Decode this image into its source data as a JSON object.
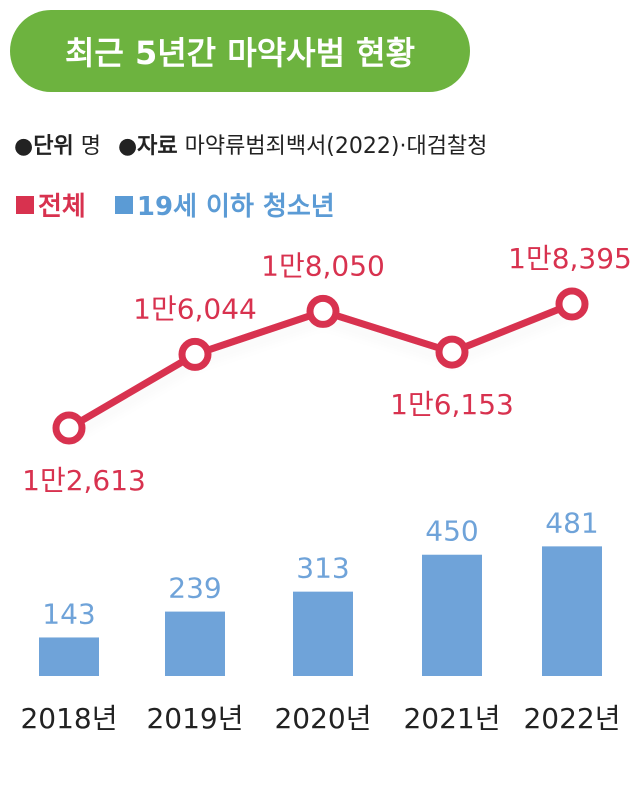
{
  "title": "최근 5년간 마약사범 현황",
  "meta": {
    "unit_label": "단위",
    "unit_value": "명",
    "source_label": "자료",
    "source_value": "마약류범죄백서(2022)·대검찰청"
  },
  "legend": [
    {
      "name": "전체",
      "color": "#d8324f"
    },
    {
      "name": "19세 이하 청소년",
      "color": "#5b9bd5"
    }
  ],
  "chart_data": {
    "type": "line+bar",
    "categories": [
      "2018년",
      "2019년",
      "2020년",
      "2021년",
      "2022년"
    ],
    "series": [
      {
        "name": "전체",
        "type": "line",
        "color": "#d8324f",
        "values": [
          12613,
          16044,
          18050,
          16153,
          18395
        ],
        "labels": [
          "1만2,613",
          "1만6,044",
          "1만8,050",
          "1만6,153",
          "1만8,395"
        ],
        "label_positions": [
          "below",
          "above",
          "above",
          "below",
          "above"
        ]
      },
      {
        "name": "19세 이하 청소년",
        "type": "bar",
        "color": "#6fa3d9",
        "values": [
          143,
          239,
          313,
          450,
          481
        ],
        "labels": [
          "143",
          "239",
          "313",
          "450",
          "481"
        ]
      }
    ]
  }
}
